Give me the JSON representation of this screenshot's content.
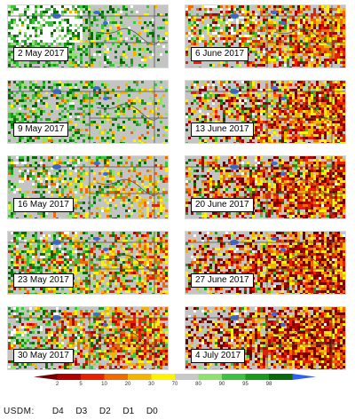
{
  "panels": [
    {
      "date": "2 May 2017",
      "dryness": 0.05,
      "wetness": 0.55,
      "whiteness": 0.35
    },
    {
      "date": "9 May 2017",
      "dryness": 0.15,
      "wetness": 0.4,
      "whiteness": 0.02
    },
    {
      "date": "16 May 2017",
      "dryness": 0.28,
      "wetness": 0.3,
      "whiteness": 0.05
    },
    {
      "date": "23 May 2017",
      "dryness": 0.45,
      "wetness": 0.35,
      "whiteness": 0.04
    },
    {
      "date": "30 May 2017",
      "dryness": 0.6,
      "wetness": 0.25,
      "whiteness": 0.04
    },
    {
      "date": "6 June 2017",
      "dryness": 0.65,
      "wetness": 0.15,
      "whiteness": 0.1
    },
    {
      "date": "13 June 2017",
      "dryness": 0.75,
      "wetness": 0.12,
      "whiteness": 0.03
    },
    {
      "date": "20 June 2017",
      "dryness": 0.8,
      "wetness": 0.1,
      "whiteness": 0.02
    },
    {
      "date": "27 June 2017",
      "dryness": 0.88,
      "wetness": 0.06,
      "whiteness": 0.02
    },
    {
      "date": "4 July 2017",
      "dryness": 0.95,
      "wetness": 0.04,
      "whiteness": 0.02
    }
  ],
  "legend": {
    "ticks": [
      "2",
      "5",
      "10",
      "20",
      "30",
      "70",
      "80",
      "90",
      "95",
      "98"
    ],
    "colors": [
      "#6e0000",
      "#b00000",
      "#e82000",
      "#f06a00",
      "#f3b400",
      "#fff200",
      "#c8c8c8",
      "#90e070",
      "#40c040",
      "#1a9a1a",
      "#0a6a0a",
      "#3060f0"
    ],
    "usdm_label": "USDM:",
    "usdm_categories": [
      "D4",
      "D3",
      "D2",
      "D1",
      "D0"
    ]
  },
  "colors": {
    "gray": "#c4c4c4",
    "boundary": "#555555",
    "water": "#3a6bd8"
  }
}
